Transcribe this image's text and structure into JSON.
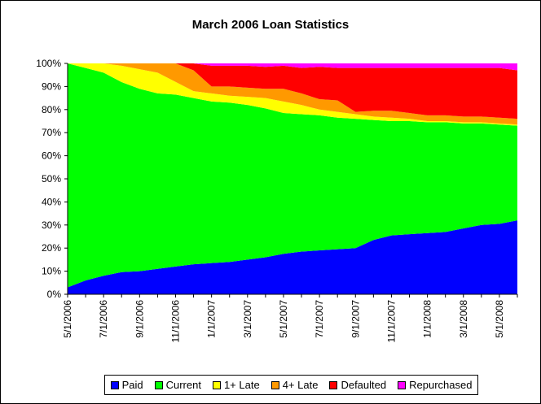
{
  "chart_data": {
    "type": "area",
    "stacked": "percent",
    "title": "March 2006 Loan Statistics",
    "xlabel": "",
    "ylabel": "",
    "ylim": [
      0,
      100
    ],
    "y_ticks": [
      "0%",
      "10%",
      "20%",
      "30%",
      "40%",
      "50%",
      "60%",
      "70%",
      "80%",
      "90%",
      "100%"
    ],
    "x_tick_labels": [
      "5/1/2006",
      "7/1/2006",
      "9/1/2006",
      "11/1/2006",
      "1/1/2007",
      "3/1/2007",
      "5/1/2007",
      "7/1/2007",
      "9/1/2007",
      "11/1/2007",
      "1/1/2008",
      "3/1/2008",
      "5/1/2008"
    ],
    "categories": [
      "5/1/2006",
      "6/1/2006",
      "7/1/2006",
      "8/1/2006",
      "9/1/2006",
      "10/1/2006",
      "11/1/2006",
      "12/1/2006",
      "1/1/2007",
      "2/1/2007",
      "3/1/2007",
      "4/1/2007",
      "5/1/2007",
      "6/1/2007",
      "7/1/2007",
      "8/1/2007",
      "9/1/2007",
      "10/1/2007",
      "11/1/2007",
      "12/1/2007",
      "1/1/2008",
      "2/1/2008",
      "3/1/2008",
      "4/1/2008",
      "5/1/2008",
      "6/1/2008"
    ],
    "legend_position": "bottom",
    "grid": false,
    "series": [
      {
        "name": "Paid",
        "color": "#0000FF",
        "values": [
          3,
          6,
          8,
          9.5,
          10,
          11,
          12,
          13,
          13.5,
          14,
          15,
          16,
          17.5,
          18.5,
          19,
          19.5,
          20,
          23.5,
          25.5,
          26,
          26.5,
          27,
          28.5,
          30,
          30.5,
          32
        ]
      },
      {
        "name": "Current",
        "color": "#00FF00",
        "values": [
          97,
          92,
          88,
          81.5,
          79,
          76,
          74.5,
          72,
          70,
          69,
          67,
          64.5,
          61,
          59.5,
          58.5,
          57,
          56,
          52,
          49.5,
          49,
          48,
          47.5,
          45.5,
          44,
          43,
          41
        ]
      },
      {
        "name": "1+ Late",
        "color": "#FFFF00",
        "values": [
          0,
          2,
          4,
          7,
          8.5,
          9,
          5.5,
          3,
          3.5,
          3,
          3.5,
          4.5,
          5,
          4,
          2.5,
          2.5,
          2,
          1.5,
          1.5,
          1,
          0.5,
          0.5,
          0.5,
          0.5,
          0.5,
          0.5
        ]
      },
      {
        "name": "4+ Late",
        "color": "#FF9900",
        "values": [
          0,
          0,
          0,
          1,
          2.5,
          4,
          8,
          9,
          3,
          4,
          4,
          4,
          5.5,
          5,
          4.5,
          5,
          1,
          2.5,
          3,
          2.5,
          2.5,
          2.5,
          2.5,
          2.5,
          2.5,
          2.5
        ]
      },
      {
        "name": "Defaulted",
        "color": "#FF0000",
        "values": [
          0,
          0,
          0,
          0,
          0,
          0,
          0,
          3,
          9,
          9,
          9.5,
          9.5,
          10,
          11,
          14,
          14,
          19,
          18.5,
          18.5,
          19.5,
          20.5,
          20.5,
          21,
          21,
          21.5,
          21
        ]
      },
      {
        "name": "Repurchased",
        "color": "#FF00FF",
        "values": [
          0,
          0,
          0,
          0,
          0,
          0,
          0,
          0,
          1,
          1,
          1,
          1.5,
          1,
          2,
          1.5,
          2,
          2,
          2,
          2,
          2,
          2,
          2,
          2,
          2,
          2,
          3
        ]
      }
    ]
  }
}
